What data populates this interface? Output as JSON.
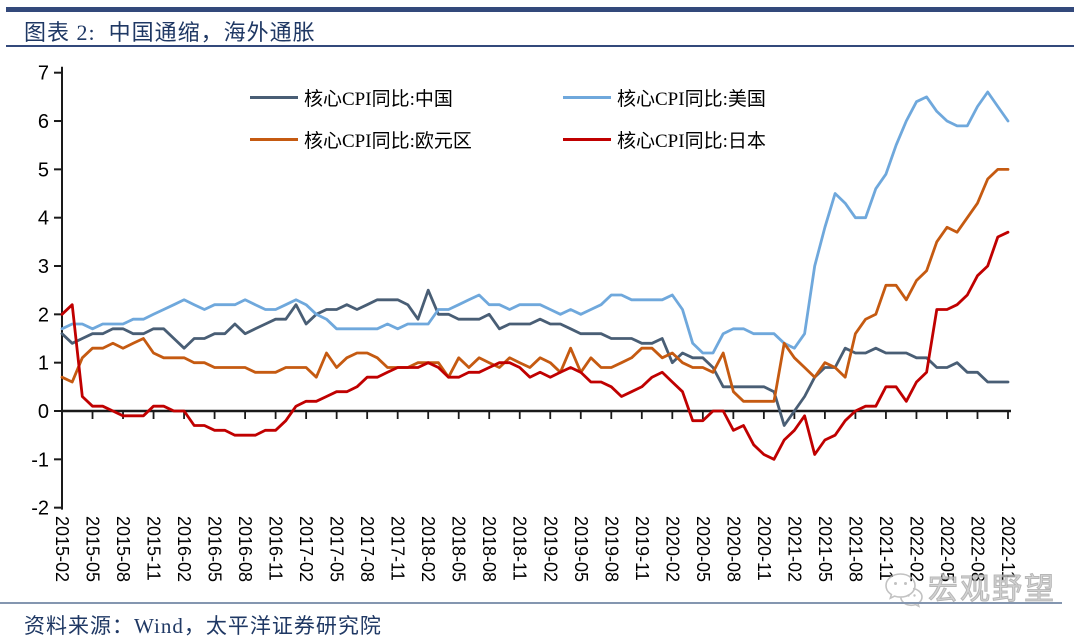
{
  "header": {
    "title": "图表 2:  中国通缩，海外通胀"
  },
  "footer": {
    "source": "资料来源：Wind，太平洋证券研究院"
  },
  "watermark": {
    "label": "宏观野望",
    "icon": "wechat-logo"
  },
  "colors": {
    "rule": "#33497B",
    "title_text": "#1F3864",
    "footer_rule": "#8496B0",
    "axis": "#1a1a1a",
    "watermark": "#a6a6a6"
  },
  "chart_data": {
    "type": "line",
    "frequency": "monthly",
    "x_start": "2015-02",
    "x_end": "2022-11",
    "ylim": [
      -2,
      7
    ],
    "grid": false,
    "legend_position": "top-center",
    "y_ticks": [
      7,
      6,
      5,
      4,
      3,
      2,
      1,
      0,
      -1,
      -2
    ],
    "x_tick_labels": [
      "2015-02",
      "2015-05",
      "2015-08",
      "2015-11",
      "2016-02",
      "2016-05",
      "2016-08",
      "2016-11",
      "2017-02",
      "2017-05",
      "2017-08",
      "2017-11",
      "2018-02",
      "2018-05",
      "2018-08",
      "2018-11",
      "2019-02",
      "2019-05",
      "2019-08",
      "2019-11",
      "2020-02",
      "2020-05",
      "2020-08",
      "2020-11",
      "2021-02",
      "2021-05",
      "2021-08",
      "2021-11",
      "2022-02",
      "2022-05",
      "2022-08",
      "2022-11"
    ],
    "series": [
      {
        "name": "核心CPI同比:中国",
        "color": "#495E75",
        "values": [
          1.6,
          1.4,
          1.5,
          1.6,
          1.6,
          1.7,
          1.7,
          1.6,
          1.6,
          1.7,
          1.7,
          1.5,
          1.3,
          1.5,
          1.5,
          1.6,
          1.6,
          1.8,
          1.6,
          1.7,
          1.8,
          1.9,
          1.9,
          2.2,
          1.8,
          2.0,
          2.1,
          2.1,
          2.2,
          2.1,
          2.2,
          2.3,
          2.3,
          2.3,
          2.2,
          1.9,
          2.5,
          2.0,
          2.0,
          1.9,
          1.9,
          1.9,
          2.0,
          1.7,
          1.8,
          1.8,
          1.8,
          1.9,
          1.8,
          1.8,
          1.7,
          1.6,
          1.6,
          1.6,
          1.5,
          1.5,
          1.5,
          1.4,
          1.4,
          1.5,
          1.0,
          1.2,
          1.1,
          1.1,
          0.9,
          0.5,
          0.5,
          0.5,
          0.5,
          0.5,
          0.4,
          -0.3,
          0.0,
          0.3,
          0.7,
          0.9,
          0.9,
          1.3,
          1.2,
          1.2,
          1.3,
          1.2,
          1.2,
          1.2,
          1.1,
          1.1,
          0.9,
          0.9,
          1.0,
          0.8,
          0.8,
          0.6,
          0.6,
          0.6
        ]
      },
      {
        "name": "核心CPI同比:美国",
        "color": "#6FA8DC",
        "values": [
          1.7,
          1.8,
          1.8,
          1.7,
          1.8,
          1.8,
          1.8,
          1.9,
          1.9,
          2.0,
          2.1,
          2.2,
          2.3,
          2.2,
          2.1,
          2.2,
          2.2,
          2.2,
          2.3,
          2.2,
          2.1,
          2.1,
          2.2,
          2.3,
          2.2,
          2.0,
          1.9,
          1.7,
          1.7,
          1.7,
          1.7,
          1.7,
          1.8,
          1.7,
          1.8,
          1.8,
          1.8,
          2.1,
          2.1,
          2.2,
          2.3,
          2.4,
          2.2,
          2.2,
          2.1,
          2.2,
          2.2,
          2.2,
          2.1,
          2.0,
          2.1,
          2.0,
          2.1,
          2.2,
          2.4,
          2.4,
          2.3,
          2.3,
          2.3,
          2.3,
          2.4,
          2.1,
          1.4,
          1.2,
          1.2,
          1.6,
          1.7,
          1.7,
          1.6,
          1.6,
          1.6,
          1.4,
          1.3,
          1.6,
          3.0,
          3.8,
          4.5,
          4.3,
          4.0,
          4.0,
          4.6,
          4.9,
          5.5,
          6.0,
          6.4,
          6.5,
          6.2,
          6.0,
          5.9,
          5.9,
          6.3,
          6.6,
          6.3,
          6.0
        ]
      },
      {
        "name": "核心CPI同比:欧元区",
        "color": "#C55A11",
        "values": [
          0.7,
          0.6,
          1.1,
          1.3,
          1.3,
          1.4,
          1.3,
          1.4,
          1.5,
          1.2,
          1.1,
          1.1,
          1.1,
          1.0,
          1.0,
          0.9,
          0.9,
          0.9,
          0.9,
          0.8,
          0.8,
          0.8,
          0.9,
          0.9,
          0.9,
          0.7,
          1.2,
          0.9,
          1.1,
          1.2,
          1.2,
          1.1,
          0.9,
          0.9,
          0.9,
          1.0,
          1.0,
          1.0,
          0.7,
          1.1,
          0.9,
          1.1,
          1.0,
          0.9,
          1.1,
          1.0,
          0.9,
          1.1,
          1.0,
          0.8,
          1.3,
          0.8,
          1.1,
          0.9,
          0.9,
          1.0,
          1.1,
          1.3,
          1.3,
          1.1,
          1.2,
          1.0,
          0.9,
          0.9,
          0.8,
          1.2,
          0.4,
          0.2,
          0.2,
          0.2,
          0.2,
          1.4,
          1.1,
          0.9,
          0.7,
          1.0,
          0.9,
          0.7,
          1.6,
          1.9,
          2.0,
          2.6,
          2.6,
          2.3,
          2.7,
          2.9,
          3.5,
          3.8,
          3.7,
          4.0,
          4.3,
          4.8,
          5.0,
          5.0
        ]
      },
      {
        "name": "核心CPI同比:日本",
        "color": "#C00000",
        "values": [
          2.0,
          2.2,
          0.3,
          0.1,
          0.1,
          0.0,
          -0.1,
          -0.1,
          -0.1,
          0.1,
          0.1,
          0.0,
          0.0,
          -0.3,
          -0.3,
          -0.4,
          -0.4,
          -0.5,
          -0.5,
          -0.5,
          -0.4,
          -0.4,
          -0.2,
          0.1,
          0.2,
          0.2,
          0.3,
          0.4,
          0.4,
          0.5,
          0.7,
          0.7,
          0.8,
          0.9,
          0.9,
          0.9,
          1.0,
          0.9,
          0.7,
          0.7,
          0.8,
          0.8,
          0.9,
          1.0,
          1.0,
          0.9,
          0.7,
          0.8,
          0.7,
          0.8,
          0.9,
          0.8,
          0.6,
          0.6,
          0.5,
          0.3,
          0.4,
          0.5,
          0.7,
          0.8,
          0.6,
          0.4,
          -0.2,
          -0.2,
          0.0,
          0.0,
          -0.4,
          -0.3,
          -0.7,
          -0.9,
          -1.0,
          -0.6,
          -0.4,
          -0.1,
          -0.9,
          -0.6,
          -0.5,
          -0.2,
          0.0,
          0.1,
          0.1,
          0.5,
          0.5,
          0.2,
          0.6,
          0.8,
          2.1,
          2.1,
          2.2,
          2.4,
          2.8,
          3.0,
          3.6,
          3.7
        ]
      }
    ]
  }
}
